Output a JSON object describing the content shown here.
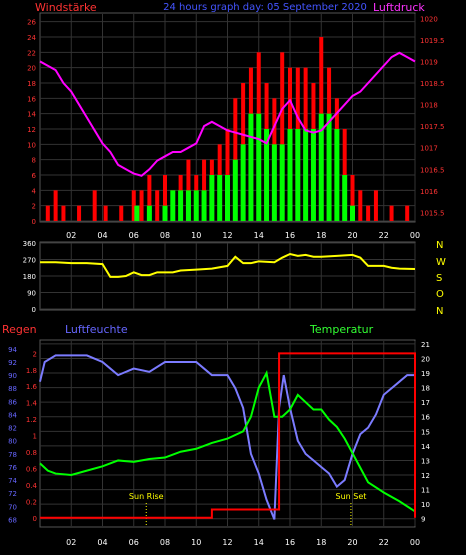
{
  "top_header": {
    "left_title": "Windstärke",
    "center_title": "24 hours graph day: 05 September 2020",
    "right_title": "Luftdruck"
  },
  "middle_panel": {
    "direction_letters": [
      "N",
      "W",
      "S",
      "O",
      "N"
    ]
  },
  "bottom_header": {
    "left1": "Regen",
    "left2": "Luftfeuchte",
    "right": "Temperatur",
    "sunrise": "Sun Rise",
    "sunset": "Sun Set"
  },
  "colors": {
    "background": "#000000",
    "grid": "#333333",
    "wind_max": "#ff0000",
    "wind_avg": "#00ff00",
    "pressure": "#ff00ff",
    "direction": "#ffff00",
    "humidity": "#7b7bff",
    "temperature": "#00ff00",
    "rain": "#ff0000",
    "tick_text": "#ffffff",
    "label_red": "#ff3333",
    "label_green": "#33ff33",
    "label_blue": "#6666ff",
    "label_yellow": "#ffff00"
  },
  "chart_data": [
    {
      "id": "wind_pressure",
      "type": "bar",
      "title": "24 hours graph day: 05 September 2020",
      "x_ticks": [
        "02",
        "04",
        "06",
        "08",
        "10",
        "12",
        "14",
        "16",
        "18",
        "20",
        "22",
        "00"
      ],
      "x_tick_hours": [
        2,
        4,
        6,
        8,
        10,
        12,
        14,
        16,
        18,
        20,
        22,
        24
      ],
      "x_range": [
        0,
        24
      ],
      "y_left_label": "Windstärke",
      "y_left_ticks": [
        0,
        2,
        4,
        6,
        8,
        10,
        12,
        14,
        16,
        18,
        20,
        22,
        24,
        26
      ],
      "y_left_range": [
        0,
        27
      ],
      "y_right_label": "Luftdruck",
      "y_right_ticks": [
        1015.5,
        1016,
        1016.5,
        1017,
        1017.5,
        1018,
        1018.5,
        1019,
        1019.5,
        1020
      ],
      "y_right_range": [
        1015.3,
        1020.1
      ],
      "wind_max": [
        [
          0.5,
          2
        ],
        [
          1.0,
          4
        ],
        [
          1.5,
          2
        ],
        [
          2.5,
          2
        ],
        [
          3.5,
          4
        ],
        [
          4.2,
          2
        ],
        [
          5.2,
          2
        ],
        [
          6.0,
          4
        ],
        [
          6.5,
          4
        ],
        [
          7.0,
          6
        ],
        [
          7.5,
          4
        ],
        [
          8.0,
          6
        ],
        [
          8.5,
          4
        ],
        [
          9.0,
          6
        ],
        [
          9.5,
          8
        ],
        [
          10.0,
          6
        ],
        [
          10.5,
          8
        ],
        [
          11.0,
          8
        ],
        [
          11.5,
          10
        ],
        [
          12.0,
          12
        ],
        [
          12.5,
          16
        ],
        [
          13.0,
          18
        ],
        [
          13.5,
          20
        ],
        [
          14.0,
          22
        ],
        [
          14.5,
          18
        ],
        [
          15.0,
          16
        ],
        [
          15.5,
          22
        ],
        [
          16.0,
          20
        ],
        [
          16.5,
          20
        ],
        [
          17.0,
          20
        ],
        [
          17.5,
          18
        ],
        [
          18.0,
          24
        ],
        [
          18.5,
          20
        ],
        [
          19.0,
          16
        ],
        [
          19.5,
          12
        ],
        [
          20.0,
          6
        ],
        [
          20.5,
          4
        ],
        [
          21.0,
          2
        ],
        [
          21.5,
          4
        ],
        [
          22.5,
          2
        ],
        [
          23.5,
          2
        ]
      ],
      "wind_avg": [
        [
          6.2,
          2
        ],
        [
          7.0,
          2
        ],
        [
          8.0,
          2
        ],
        [
          8.5,
          4
        ],
        [
          9.0,
          4
        ],
        [
          9.5,
          4
        ],
        [
          10.0,
          4
        ],
        [
          10.5,
          4
        ],
        [
          11.0,
          6
        ],
        [
          11.5,
          6
        ],
        [
          12.0,
          6
        ],
        [
          12.5,
          8
        ],
        [
          13.0,
          10
        ],
        [
          13.5,
          14
        ],
        [
          14.0,
          14
        ],
        [
          14.5,
          12
        ],
        [
          15.0,
          10
        ],
        [
          15.5,
          10
        ],
        [
          16.0,
          12
        ],
        [
          16.5,
          12
        ],
        [
          17.0,
          12
        ],
        [
          17.5,
          12
        ],
        [
          18.0,
          14
        ],
        [
          18.5,
          14
        ],
        [
          19.0,
          12
        ],
        [
          19.5,
          6
        ],
        [
          20.0,
          2
        ]
      ],
      "pressure": [
        [
          0.0,
          1019.0
        ],
        [
          0.5,
          1018.9
        ],
        [
          1.0,
          1018.8
        ],
        [
          1.5,
          1018.5
        ],
        [
          2.0,
          1018.3
        ],
        [
          2.5,
          1018.0
        ],
        [
          3.0,
          1017.7
        ],
        [
          3.5,
          1017.4
        ],
        [
          4.0,
          1017.1
        ],
        [
          4.5,
          1016.9
        ],
        [
          5.0,
          1016.6
        ],
        [
          5.5,
          1016.5
        ],
        [
          6.0,
          1016.4
        ],
        [
          6.5,
          1016.35
        ],
        [
          7.0,
          1016.5
        ],
        [
          7.5,
          1016.7
        ],
        [
          8.0,
          1016.8
        ],
        [
          8.5,
          1016.9
        ],
        [
          9.0,
          1016.9
        ],
        [
          9.5,
          1017.0
        ],
        [
          10.0,
          1017.1
        ],
        [
          10.5,
          1017.5
        ],
        [
          11.0,
          1017.6
        ],
        [
          11.5,
          1017.5
        ],
        [
          12.0,
          1017.4
        ],
        [
          12.5,
          1017.35
        ],
        [
          13.0,
          1017.3
        ],
        [
          13.5,
          1017.25
        ],
        [
          14.0,
          1017.2
        ],
        [
          14.5,
          1017.1
        ],
        [
          15.0,
          1017.5
        ],
        [
          15.5,
          1017.9
        ],
        [
          16.0,
          1018.1
        ],
        [
          16.5,
          1017.7
        ],
        [
          17.0,
          1017.4
        ],
        [
          17.5,
          1017.35
        ],
        [
          18.0,
          1017.4
        ],
        [
          18.5,
          1017.6
        ],
        [
          19.0,
          1017.8
        ],
        [
          19.5,
          1018.0
        ],
        [
          20.0,
          1018.2
        ],
        [
          20.5,
          1018.3
        ],
        [
          21.0,
          1018.5
        ],
        [
          21.5,
          1018.7
        ],
        [
          22.0,
          1018.9
        ],
        [
          22.5,
          1019.1
        ],
        [
          23.0,
          1019.2
        ],
        [
          23.5,
          1019.1
        ],
        [
          24.0,
          1019.0
        ]
      ]
    },
    {
      "id": "wind_direction",
      "type": "line",
      "x_range": [
        0,
        24
      ],
      "y_ticks": [
        0,
        90,
        180,
        270,
        360
      ],
      "y_range": [
        0,
        360
      ],
      "series": [
        {
          "values": [
            [
              0.0,
              255
            ],
            [
              1.0,
              255
            ],
            [
              2.0,
              250
            ],
            [
              3.0,
              250
            ],
            [
              4.0,
              245
            ],
            [
              4.5,
              175
            ],
            [
              5.0,
              175
            ],
            [
              5.5,
              180
            ],
            [
              6.0,
              200
            ],
            [
              6.5,
              185
            ],
            [
              7.0,
              185
            ],
            [
              7.5,
              200
            ],
            [
              8.0,
              200
            ],
            [
              8.5,
              200
            ],
            [
              9.0,
              210
            ],
            [
              10.0,
              215
            ],
            [
              11.0,
              220
            ],
            [
              12.0,
              235
            ],
            [
              12.5,
              285
            ],
            [
              13.0,
              250
            ],
            [
              13.5,
              250
            ],
            [
              14.0,
              260
            ],
            [
              15.0,
              255
            ],
            [
              15.5,
              280
            ],
            [
              16.0,
              300
            ],
            [
              16.5,
              290
            ],
            [
              17.0,
              295
            ],
            [
              17.5,
              285
            ],
            [
              18.0,
              285
            ],
            [
              19.0,
              290
            ],
            [
              20.0,
              295
            ],
            [
              20.5,
              280
            ],
            [
              21.0,
              235
            ],
            [
              22.0,
              235
            ],
            [
              22.5,
              225
            ],
            [
              23.0,
              220
            ],
            [
              24.0,
              218
            ]
          ]
        }
      ]
    },
    {
      "id": "rain_humidity_temperature",
      "type": "line",
      "x_range": [
        0,
        24
      ],
      "y_left1_label": "Regen",
      "y_left1_ticks": [
        0,
        0.2,
        0.4,
        0.6,
        0.8,
        1,
        1.2,
        1.4,
        1.6,
        1.8,
        2
      ],
      "y_left1_range": [
        -0.1,
        2.15
      ],
      "y_left2_label": "Luftfeuchte",
      "y_left2_ticks": [
        68,
        70,
        72,
        74,
        76,
        78,
        80,
        82,
        84,
        86,
        88,
        90,
        92,
        94
      ],
      "y_left2_range": [
        67.0,
        95.2
      ],
      "y_right_label": "Temperatur",
      "y_right_ticks": [
        9,
        10,
        11,
        12,
        13,
        14,
        15,
        16,
        17,
        18,
        19,
        20,
        21
      ],
      "y_right_range": [
        8.5,
        21.2
      ],
      "annotations": [
        {
          "label": "Sun Rise",
          "x": 6.8
        },
        {
          "label": "Sun Set",
          "x": 19.9
        }
      ],
      "humidity": [
        [
          0.0,
          89
        ],
        [
          0.3,
          92
        ],
        [
          1.0,
          93
        ],
        [
          2.0,
          93
        ],
        [
          3.0,
          93
        ],
        [
          4.0,
          92
        ],
        [
          4.5,
          91
        ],
        [
          5.0,
          90
        ],
        [
          6.0,
          91
        ],
        [
          7.0,
          90.5
        ],
        [
          8.0,
          92
        ],
        [
          9.0,
          92
        ],
        [
          10.0,
          92
        ],
        [
          10.5,
          91
        ],
        [
          11.0,
          90
        ],
        [
          12.0,
          90
        ],
        [
          12.5,
          88
        ],
        [
          13.0,
          85
        ],
        [
          13.5,
          78
        ],
        [
          14.0,
          75
        ],
        [
          14.5,
          71
        ],
        [
          15.0,
          68
        ],
        [
          15.3,
          85
        ],
        [
          15.6,
          90
        ],
        [
          16.0,
          85
        ],
        [
          16.5,
          80
        ],
        [
          17.0,
          78
        ],
        [
          17.5,
          77
        ],
        [
          18.0,
          76
        ],
        [
          18.5,
          75
        ],
        [
          19.0,
          73
        ],
        [
          19.5,
          74
        ],
        [
          20.0,
          78
        ],
        [
          20.5,
          81
        ],
        [
          21.0,
          82
        ],
        [
          21.5,
          84
        ],
        [
          22.0,
          87
        ],
        [
          22.5,
          88
        ],
        [
          23.0,
          89
        ],
        [
          23.5,
          90
        ],
        [
          24.0,
          90
        ]
      ],
      "temperature": [
        [
          0.0,
          12.8
        ],
        [
          0.5,
          12.3
        ],
        [
          1.0,
          12.1
        ],
        [
          2.0,
          12.0
        ],
        [
          3.0,
          12.3
        ],
        [
          4.0,
          12.6
        ],
        [
          5.0,
          13.0
        ],
        [
          6.0,
          12.9
        ],
        [
          7.0,
          13.1
        ],
        [
          8.0,
          13.2
        ],
        [
          9.0,
          13.6
        ],
        [
          10.0,
          13.8
        ],
        [
          11.0,
          14.2
        ],
        [
          12.0,
          14.5
        ],
        [
          13.0,
          15.0
        ],
        [
          13.5,
          16.0
        ],
        [
          14.0,
          18.0
        ],
        [
          14.5,
          19.0
        ],
        [
          15.0,
          16.0
        ],
        [
          15.5,
          16.0
        ],
        [
          16.0,
          16.5
        ],
        [
          16.5,
          17.5
        ],
        [
          17.0,
          17.0
        ],
        [
          17.5,
          16.5
        ],
        [
          18.0,
          16.5
        ],
        [
          18.5,
          15.8
        ],
        [
          19.0,
          15.3
        ],
        [
          19.5,
          14.5
        ],
        [
          20.0,
          13.5
        ],
        [
          20.5,
          12.5
        ],
        [
          21.0,
          11.5
        ],
        [
          22.0,
          10.8
        ],
        [
          23.0,
          10.2
        ],
        [
          24.0,
          9.5
        ]
      ],
      "rain": [
        [
          0.0,
          0
        ],
        [
          11.0,
          0
        ],
        [
          11.0,
          0.1
        ],
        [
          15.3,
          0.1
        ],
        [
          15.3,
          2
        ],
        [
          24.0,
          2
        ],
        [
          24.0,
          0
        ]
      ]
    }
  ]
}
